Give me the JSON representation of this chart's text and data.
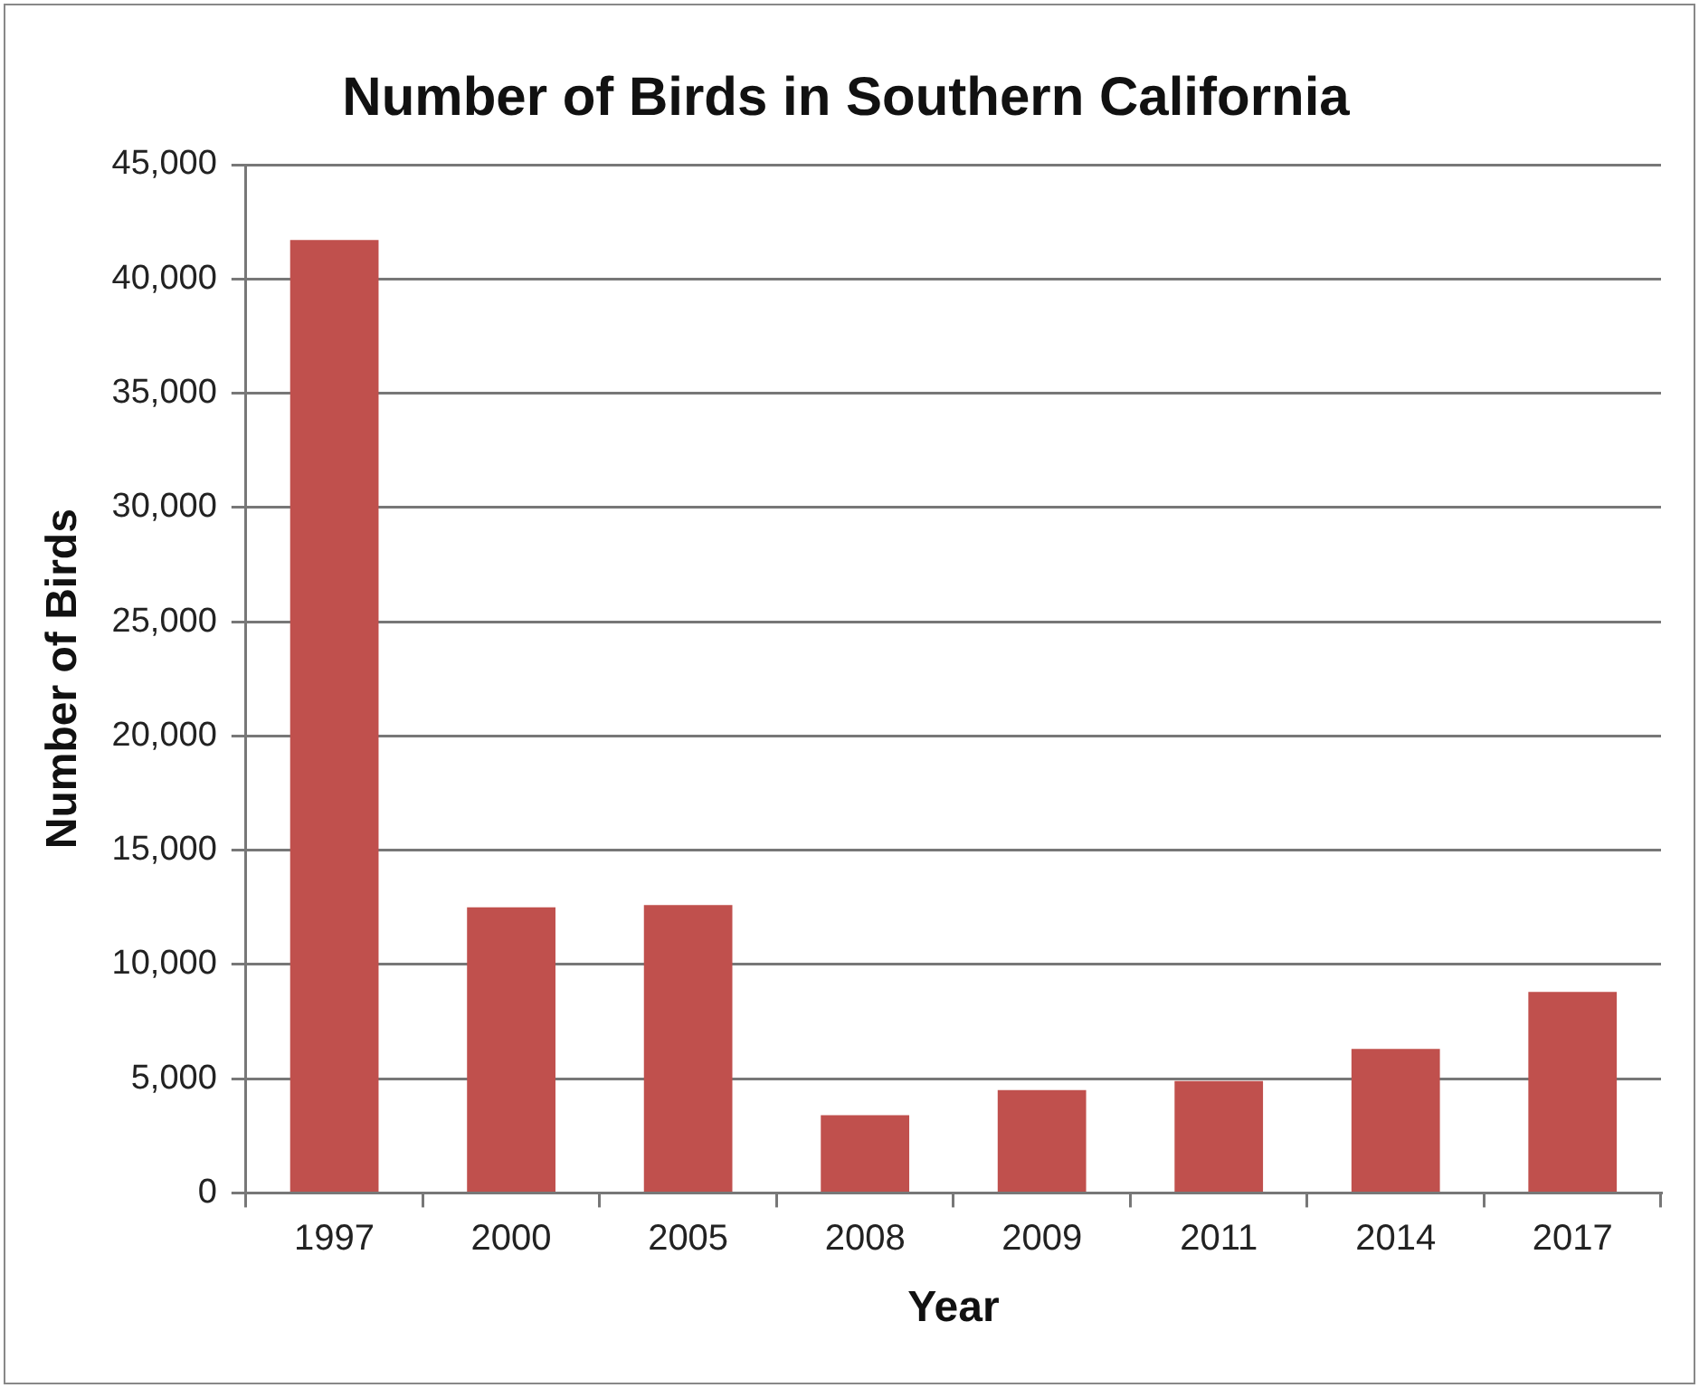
{
  "chart_data": {
    "type": "bar",
    "title": "Number of Birds in Southern California",
    "xlabel": "Year",
    "ylabel": "Number of Birds",
    "categories": [
      "1997",
      "2000",
      "2005",
      "2008",
      "2009",
      "2011",
      "2014",
      "2017"
    ],
    "values": [
      41700,
      12500,
      12600,
      3400,
      4500,
      4900,
      6300,
      8800
    ],
    "color": "#c0504d",
    "ylim": [
      0,
      45000
    ],
    "yticks": [
      0,
      {
        "value": 5000,
        "label": "5,000"
      },
      {
        "value": 10000,
        "label": "10,000"
      },
      {
        "value": 15000,
        "label": "15,000"
      },
      {
        "value": 20000,
        "label": "20,000"
      },
      {
        "value": 25000,
        "label": "25,000"
      },
      {
        "value": 30000,
        "label": "30,000"
      },
      {
        "value": 35000,
        "label": "35,000"
      },
      {
        "value": 40000,
        "label": "40,000"
      },
      {
        "value": 45000,
        "label": "45,000"
      }
    ],
    "grid": "y",
    "legend": false
  }
}
